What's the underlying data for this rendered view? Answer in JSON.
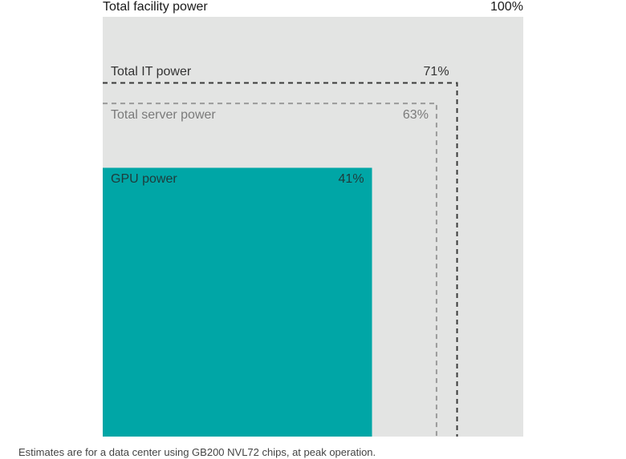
{
  "chart_data": {
    "type": "nested-area",
    "unit": "%",
    "series": [
      {
        "name": "Total facility power",
        "value": 100,
        "value_label": "100%",
        "style": "filled",
        "color": "#e3e4e3"
      },
      {
        "name": "Total IT power",
        "value": 71,
        "value_label": "71%",
        "style": "dashed",
        "color": "#3a3a3a"
      },
      {
        "name": "Total server power",
        "value": 63,
        "value_label": "63%",
        "style": "dashed",
        "color": "#9a9a9a"
      },
      {
        "name": "GPU power",
        "value": 41,
        "value_label": "41%",
        "style": "filled",
        "color": "#00a6a6"
      }
    ]
  },
  "footnote": "Estimates are for a data center using GB200 NVL72 chips, at peak operation."
}
